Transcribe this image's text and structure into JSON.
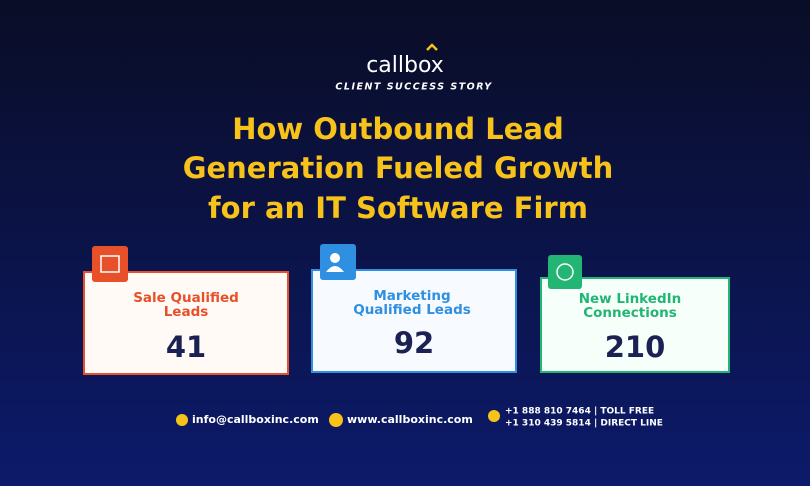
{
  "brand": {
    "name": "callbox",
    "tagline": "CLIENT SUCCESS STORY"
  },
  "title": {
    "lines": [
      "How Outbound Lead",
      "Generation Fueled Growth",
      "for an IT Software Firm"
    ]
  },
  "cards": [
    {
      "label_lines": [
        "Sale Qualified",
        "Leads"
      ],
      "value": 41
    },
    {
      "label_lines": [
        "Marketing",
        "Qualified Leads"
      ],
      "value": 92
    },
    {
      "label_lines": [
        "New LinkedIn",
        "Connections"
      ],
      "value": 210
    }
  ],
  "contact": {
    "email": "info@callboxinc.com",
    "website": "www.callboxinc.com",
    "phones": [
      "+1 888 810 7464 | TOLL FREE",
      "+1 310 439 5814 | DIRECT LINE"
    ]
  }
}
